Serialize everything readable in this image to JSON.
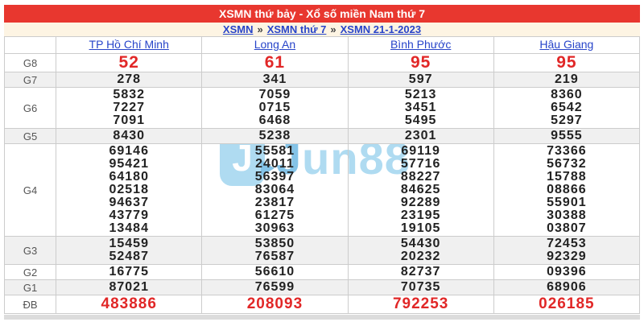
{
  "title": "XSMN thứ bảy - Xổ số miền Nam thứ 7",
  "breadcrumb": {
    "separator": "»",
    "items": [
      "XSMN",
      "XSMN thứ 7",
      "XSMN 21-1-2023"
    ]
  },
  "table": {
    "provinces": [
      "TP Hồ Chí Minh",
      "Long An",
      "Bình Phước",
      "Hậu Giang"
    ],
    "rows": [
      {
        "label": "G8",
        "style": "red-large",
        "values": [
          [
            "52"
          ],
          [
            "61"
          ],
          [
            "95"
          ],
          [
            "95"
          ]
        ]
      },
      {
        "label": "G7",
        "style": "",
        "values": [
          [
            "278"
          ],
          [
            "341"
          ],
          [
            "597"
          ],
          [
            "219"
          ]
        ]
      },
      {
        "label": "G6",
        "style": "",
        "values": [
          [
            "5832",
            "7227",
            "7091"
          ],
          [
            "7059",
            "0715",
            "6468"
          ],
          [
            "5213",
            "3451",
            "5495"
          ],
          [
            "8360",
            "6542",
            "5297"
          ]
        ]
      },
      {
        "label": "G5",
        "style": "",
        "values": [
          [
            "8430"
          ],
          [
            "5238"
          ],
          [
            "2301"
          ],
          [
            "9555"
          ]
        ]
      },
      {
        "label": "G4",
        "style": "",
        "values": [
          [
            "69146",
            "95421",
            "64180",
            "02518",
            "94637",
            "43779",
            "13484"
          ],
          [
            "55581",
            "24011",
            "56397",
            "83064",
            "23817",
            "61275",
            "30963"
          ],
          [
            "69119",
            "57716",
            "88227",
            "84625",
            "92289",
            "23195",
            "19105"
          ],
          [
            "73366",
            "56732",
            "15788",
            "08866",
            "55901",
            "30388",
            "03807"
          ]
        ]
      },
      {
        "label": "G3",
        "style": "",
        "values": [
          [
            "15459",
            "52487"
          ],
          [
            "53850",
            "76587"
          ],
          [
            "54430",
            "20232"
          ],
          [
            "72453",
            "92329"
          ]
        ]
      },
      {
        "label": "G2",
        "style": "",
        "values": [
          [
            "16775"
          ],
          [
            "56610"
          ],
          [
            "82737"
          ],
          [
            "09396"
          ]
        ]
      },
      {
        "label": "G1",
        "style": "",
        "values": [
          [
            "87021"
          ],
          [
            "76599"
          ],
          [
            "70735"
          ],
          [
            "68906"
          ]
        ]
      },
      {
        "label": "ĐB",
        "style": "red-medium",
        "values": [
          [
            "483886"
          ],
          [
            "208093"
          ],
          [
            "792253"
          ],
          [
            "026185"
          ]
        ]
      }
    ]
  },
  "watermark": {
    "logo_letter": "J",
    "text_first": "J",
    "text_rest": "un88"
  },
  "colors": {
    "header-bg": "#e8372f",
    "breadcrumb-bg": "#fdf4e3",
    "link-blue": "#2744c9",
    "number-red": "#e12727",
    "number-black": "#222222",
    "label-gray": "#555555",
    "stripe": "#f0f0f0",
    "border": "#cccccc",
    "watermark-light": "#a5d7f0",
    "watermark-dark": "#74bbe4",
    "strip-gray": "#dcdcdc"
  }
}
